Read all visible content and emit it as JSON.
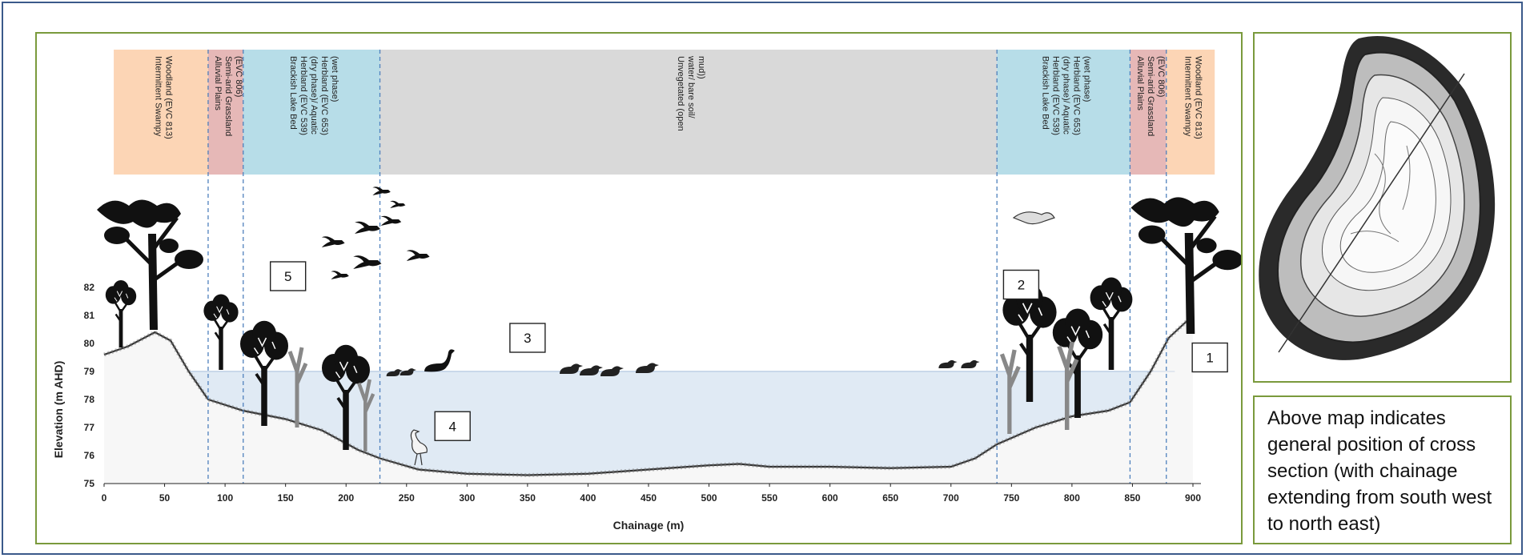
{
  "zones": [
    {
      "label": "Intermittent Swampy Woodland (EVC 813)",
      "color": "#fcd5b5"
    },
    {
      "label": "Alluvial Plains Semi-arid Grassland (EVC 806)",
      "color": "#e6b8b7"
    },
    {
      "label": "Brackish Lake Bed Herbland (EVC 539) (dry phase)/ Aquatic Herbland (EVC 653) (wet phase)",
      "color": "#b7dde8"
    },
    {
      "label": "Unvegetated (open water/ bare soil/ mud))",
      "color": "#d9d9d9"
    },
    {
      "label": "Brackish Lake Bed Herbland (EVC 539) (dry phase)/ Aquatic Herbland (EVC 653) (wet phase)",
      "color": "#b7dde8"
    },
    {
      "label": "Alluvial Plains Semi-arid Grassland (EVC 806)",
      "color": "#e6b8b7"
    },
    {
      "label": "Intermittent Swampy Woodland (EVC 813)",
      "color": "#fcd5b5"
    }
  ],
  "chart_data": {
    "type": "area",
    "xlabel": "Chainage (m)",
    "ylabel": "Elevation (m AHD)",
    "xlim": [
      0,
      900
    ],
    "ylim": [
      75,
      82
    ],
    "x_ticks": [
      "0",
      "50",
      "100",
      "150",
      "200",
      "250",
      "300",
      "350",
      "400",
      "450",
      "500",
      "550",
      "600",
      "650",
      "700",
      "750",
      "800",
      "850",
      "900"
    ],
    "y_ticks": [
      "75",
      "76",
      "77",
      "78",
      "79",
      "80",
      "81",
      "82"
    ],
    "water_level": 79,
    "zone_boundaries": [
      86,
      115,
      228,
      738,
      848,
      878
    ],
    "terrain": [
      {
        "x": 0,
        "y": 79.6
      },
      {
        "x": 20,
        "y": 79.9
      },
      {
        "x": 42,
        "y": 80.4
      },
      {
        "x": 55,
        "y": 80.1
      },
      {
        "x": 70,
        "y": 79.0
      },
      {
        "x": 86,
        "y": 78.0
      },
      {
        "x": 115,
        "y": 77.6
      },
      {
        "x": 150,
        "y": 77.3
      },
      {
        "x": 180,
        "y": 76.9
      },
      {
        "x": 210,
        "y": 76.2
      },
      {
        "x": 228,
        "y": 75.9
      },
      {
        "x": 260,
        "y": 75.5
      },
      {
        "x": 300,
        "y": 75.35
      },
      {
        "x": 350,
        "y": 75.3
      },
      {
        "x": 400,
        "y": 75.35
      },
      {
        "x": 450,
        "y": 75.5
      },
      {
        "x": 500,
        "y": 75.65
      },
      {
        "x": 525,
        "y": 75.7
      },
      {
        "x": 550,
        "y": 75.6
      },
      {
        "x": 600,
        "y": 75.6
      },
      {
        "x": 650,
        "y": 75.55
      },
      {
        "x": 700,
        "y": 75.6
      },
      {
        "x": 720,
        "y": 75.9
      },
      {
        "x": 738,
        "y": 76.4
      },
      {
        "x": 770,
        "y": 77.0
      },
      {
        "x": 800,
        "y": 77.4
      },
      {
        "x": 830,
        "y": 77.6
      },
      {
        "x": 848,
        "y": 77.9
      },
      {
        "x": 865,
        "y": 79.0
      },
      {
        "x": 880,
        "y": 80.2
      },
      {
        "x": 900,
        "y": 81.0
      }
    ]
  },
  "markers": [
    {
      "label": "1",
      "x": 914,
      "y": 79.5
    },
    {
      "label": "2",
      "x": 758,
      "y": 82.1
    },
    {
      "label": "3",
      "x": 350,
      "y": 80.2
    },
    {
      "label": "4",
      "x": 288,
      "y": 77.05
    },
    {
      "label": "5",
      "x": 152,
      "y": 82.4
    }
  ],
  "caption": "Above map indicates general position of cross section (with chainage extending from south west to north east)"
}
